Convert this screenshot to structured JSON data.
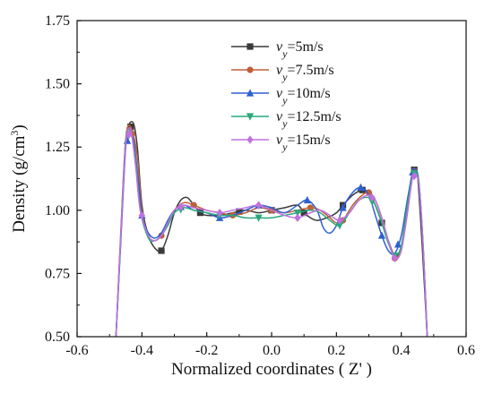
{
  "chart_data": {
    "type": "line",
    "title": "",
    "xlabel": "Normalized coordinates ( Z' )",
    "ylabel_prefix": "Density (g/cm",
    "ylabel_sup": "3",
    "ylabel_suffix": ")",
    "xlim": [
      -0.6,
      0.6
    ],
    "ylim": [
      0.5,
      1.75
    ],
    "x_ticks": [
      "-0.6",
      "-0.4",
      "-0.2",
      "0.0",
      "0.2",
      "0.4",
      "0.6"
    ],
    "y_ticks": [
      "0.50",
      "0.75",
      "1.00",
      "1.25",
      "1.50",
      "1.75"
    ],
    "x_tick_values": [
      -0.6,
      -0.4,
      -0.2,
      0.0,
      0.2,
      0.4,
      0.6
    ],
    "y_tick_values": [
      0.5,
      0.75,
      1.0,
      1.25,
      1.5,
      1.75
    ],
    "grid": false,
    "legend_position": "top-right",
    "series": [
      {
        "legend_var": "v",
        "legend_sub": "y",
        "legend_value": "=5m/s",
        "color": "#3a3a3a",
        "marker": "square",
        "points": [
          [
            -0.48,
            0.5
          ],
          [
            -0.465,
            0.9
          ],
          [
            -0.45,
            1.27
          ],
          [
            -0.43,
            1.35
          ],
          [
            -0.415,
            1.26
          ],
          [
            -0.4,
            1.02
          ],
          [
            -0.38,
            0.9
          ],
          [
            -0.36,
            0.85
          ],
          [
            -0.34,
            0.84
          ],
          [
            -0.32,
            0.9
          ],
          [
            -0.3,
            0.99
          ],
          [
            -0.28,
            1.04
          ],
          [
            -0.26,
            1.05
          ],
          [
            -0.24,
            1.02
          ],
          [
            -0.22,
            0.99
          ],
          [
            -0.2,
            0.98
          ],
          [
            -0.16,
            0.98
          ],
          [
            -0.12,
            0.99
          ],
          [
            -0.08,
            1.0
          ],
          [
            -0.04,
            0.99
          ],
          [
            0.0,
            1.0
          ],
          [
            0.04,
            1.01
          ],
          [
            0.08,
            1.02
          ],
          [
            0.1,
            0.99
          ],
          [
            0.12,
            0.97
          ],
          [
            0.14,
            0.96
          ],
          [
            0.17,
            0.97
          ],
          [
            0.2,
            0.99
          ],
          [
            0.22,
            1.02
          ],
          [
            0.25,
            1.06
          ],
          [
            0.28,
            1.08
          ],
          [
            0.3,
            1.07
          ],
          [
            0.32,
            1.02
          ],
          [
            0.34,
            0.95
          ],
          [
            0.36,
            0.88
          ],
          [
            0.38,
            0.82
          ],
          [
            0.4,
            0.85
          ],
          [
            0.42,
            1.0
          ],
          [
            0.43,
            1.12
          ],
          [
            0.44,
            1.16
          ],
          [
            0.45,
            1.14
          ],
          [
            0.465,
            0.85
          ],
          [
            0.48,
            0.5
          ]
        ],
        "marker_x": [
          -0.435,
          -0.34,
          -0.22,
          -0.1,
          0.0,
          0.1,
          0.22,
          0.28,
          0.34,
          0.44
        ]
      },
      {
        "legend_var": "v",
        "legend_sub": "y",
        "legend_value": "=7.5m/s",
        "color": "#c0603a",
        "marker": "circle",
        "points": [
          [
            -0.48,
            0.5
          ],
          [
            -0.465,
            0.92
          ],
          [
            -0.45,
            1.28
          ],
          [
            -0.435,
            1.33
          ],
          [
            -0.415,
            1.22
          ],
          [
            -0.4,
            1.0
          ],
          [
            -0.38,
            0.9
          ],
          [
            -0.36,
            0.88
          ],
          [
            -0.34,
            0.9
          ],
          [
            -0.32,
            0.95
          ],
          [
            -0.3,
            1.0
          ],
          [
            -0.27,
            1.03
          ],
          [
            -0.24,
            1.02
          ],
          [
            -0.2,
            1.0
          ],
          [
            -0.16,
            0.99
          ],
          [
            -0.12,
            0.98
          ],
          [
            -0.08,
            0.99
          ],
          [
            -0.04,
            1.01
          ],
          [
            0.0,
            1.0
          ],
          [
            0.04,
            0.99
          ],
          [
            0.08,
            1.0
          ],
          [
            0.12,
            1.01
          ],
          [
            0.15,
            1.0
          ],
          [
            0.18,
            0.97
          ],
          [
            0.2,
            0.95
          ],
          [
            0.22,
            0.96
          ],
          [
            0.25,
            1.02
          ],
          [
            0.28,
            1.06
          ],
          [
            0.3,
            1.07
          ],
          [
            0.32,
            1.04
          ],
          [
            0.34,
            0.97
          ],
          [
            0.36,
            0.88
          ],
          [
            0.38,
            0.81
          ],
          [
            0.4,
            0.85
          ],
          [
            0.42,
            1.02
          ],
          [
            0.435,
            1.15
          ],
          [
            0.445,
            1.16
          ],
          [
            0.455,
            1.1
          ],
          [
            0.468,
            0.85
          ],
          [
            0.48,
            0.5
          ]
        ],
        "marker_x": [
          -0.43,
          -0.34,
          -0.24,
          -0.12,
          0.0,
          0.12,
          0.22,
          0.3,
          0.38,
          0.44
        ]
      },
      {
        "legend_var": "v",
        "legend_sub": "y",
        "legend_value": "=10m/s",
        "color": "#2f5fd0",
        "marker": "triangle",
        "points": [
          [
            -0.48,
            0.5
          ],
          [
            -0.465,
            0.88
          ],
          [
            -0.45,
            1.25
          ],
          [
            -0.44,
            1.3
          ],
          [
            -0.425,
            1.27
          ],
          [
            -0.41,
            1.1
          ],
          [
            -0.4,
            0.98
          ],
          [
            -0.38,
            0.91
          ],
          [
            -0.36,
            0.89
          ],
          [
            -0.34,
            0.91
          ],
          [
            -0.32,
            0.96
          ],
          [
            -0.3,
            1.0
          ],
          [
            -0.27,
            1.02
          ],
          [
            -0.24,
            1.0
          ],
          [
            -0.2,
            0.99
          ],
          [
            -0.16,
            0.97
          ],
          [
            -0.12,
            0.98
          ],
          [
            -0.08,
            1.0
          ],
          [
            -0.04,
            1.02
          ],
          [
            0.0,
            1.01
          ],
          [
            0.04,
            0.99
          ],
          [
            0.08,
            1.02
          ],
          [
            0.11,
            1.04
          ],
          [
            0.14,
            1.0
          ],
          [
            0.16,
            0.93
          ],
          [
            0.18,
            0.91
          ],
          [
            0.2,
            0.94
          ],
          [
            0.22,
            1.01
          ],
          [
            0.25,
            1.07
          ],
          [
            0.275,
            1.09
          ],
          [
            0.3,
            1.06
          ],
          [
            0.32,
            0.98
          ],
          [
            0.34,
            0.9
          ],
          [
            0.36,
            0.84
          ],
          [
            0.38,
            0.83
          ],
          [
            0.4,
            0.9
          ],
          [
            0.42,
            1.05
          ],
          [
            0.435,
            1.15
          ],
          [
            0.445,
            1.16
          ],
          [
            0.455,
            1.1
          ],
          [
            0.468,
            0.84
          ],
          [
            0.48,
            0.5
          ]
        ],
        "marker_x": [
          -0.445,
          -0.4,
          -0.28,
          -0.16,
          -0.04,
          0.11,
          0.22,
          0.275,
          0.34,
          0.39,
          0.435
        ]
      },
      {
        "legend_var": "v",
        "legend_sub": "y",
        "legend_value": "=12.5m/s",
        "color": "#2aa87a",
        "marker": "triangle-down",
        "points": [
          [
            -0.48,
            0.5
          ],
          [
            -0.465,
            0.9
          ],
          [
            -0.45,
            1.27
          ],
          [
            -0.435,
            1.31
          ],
          [
            -0.42,
            1.2
          ],
          [
            -0.405,
            1.0
          ],
          [
            -0.38,
            0.89
          ],
          [
            -0.36,
            0.88
          ],
          [
            -0.34,
            0.9
          ],
          [
            -0.32,
            0.94
          ],
          [
            -0.3,
            0.99
          ],
          [
            -0.27,
            1.01
          ],
          [
            -0.24,
            1.0
          ],
          [
            -0.2,
            0.99
          ],
          [
            -0.16,
            0.98
          ],
          [
            -0.12,
            0.98
          ],
          [
            -0.08,
            0.97
          ],
          [
            -0.04,
            0.97
          ],
          [
            0.0,
            0.97
          ],
          [
            0.04,
            0.98
          ],
          [
            0.08,
            0.99
          ],
          [
            0.12,
            1.0
          ],
          [
            0.15,
            0.99
          ],
          [
            0.18,
            0.96
          ],
          [
            0.21,
            0.94
          ],
          [
            0.24,
            0.99
          ],
          [
            0.27,
            1.04
          ],
          [
            0.3,
            1.05
          ],
          [
            0.32,
            1.02
          ],
          [
            0.34,
            0.95
          ],
          [
            0.36,
            0.87
          ],
          [
            0.38,
            0.82
          ],
          [
            0.4,
            0.86
          ],
          [
            0.42,
            1.03
          ],
          [
            0.435,
            1.14
          ],
          [
            0.445,
            1.15
          ],
          [
            0.455,
            1.1
          ],
          [
            0.468,
            0.84
          ],
          [
            0.48,
            0.5
          ]
        ],
        "marker_x": [
          -0.44,
          -0.28,
          -0.16,
          -0.04,
          0.08,
          0.21,
          0.31,
          0.38,
          0.44
        ]
      },
      {
        "legend_var": "v",
        "legend_sub": "y",
        "legend_value": "=15m/s",
        "color": "#c070e0",
        "marker": "diamond",
        "points": [
          [
            -0.48,
            0.5
          ],
          [
            -0.465,
            0.9
          ],
          [
            -0.45,
            1.26
          ],
          [
            -0.435,
            1.32
          ],
          [
            -0.42,
            1.18
          ],
          [
            -0.405,
            1.0
          ],
          [
            -0.38,
            0.9
          ],
          [
            -0.36,
            0.88
          ],
          [
            -0.34,
            0.9
          ],
          [
            -0.32,
            0.95
          ],
          [
            -0.3,
            1.0
          ],
          [
            -0.27,
            1.02
          ],
          [
            -0.24,
            1.01
          ],
          [
            -0.2,
            1.0
          ],
          [
            -0.16,
            0.99
          ],
          [
            -0.12,
            1.0
          ],
          [
            -0.08,
            1.01
          ],
          [
            -0.04,
            1.02
          ],
          [
            0.0,
            1.0
          ],
          [
            0.04,
            0.98
          ],
          [
            0.08,
            0.97
          ],
          [
            0.12,
            0.99
          ],
          [
            0.15,
            1.0
          ],
          [
            0.18,
            0.98
          ],
          [
            0.21,
            0.96
          ],
          [
            0.24,
            0.99
          ],
          [
            0.27,
            1.04
          ],
          [
            0.3,
            1.06
          ],
          [
            0.32,
            1.04
          ],
          [
            0.34,
            0.97
          ],
          [
            0.36,
            0.88
          ],
          [
            0.38,
            0.81
          ],
          [
            0.4,
            0.84
          ],
          [
            0.42,
            1.0
          ],
          [
            0.435,
            1.13
          ],
          [
            0.445,
            1.14
          ],
          [
            0.455,
            1.09
          ],
          [
            0.468,
            0.84
          ],
          [
            0.48,
            0.5
          ]
        ],
        "marker_x": [
          -0.44,
          -0.4,
          -0.28,
          -0.16,
          -0.04,
          0.08,
          0.21,
          0.31,
          0.38,
          0.44
        ]
      }
    ]
  }
}
